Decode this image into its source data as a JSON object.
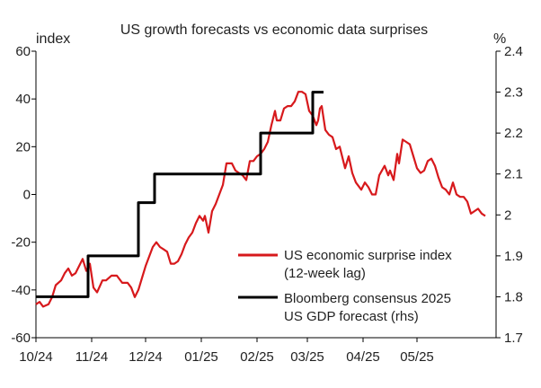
{
  "chart_data": {
    "type": "line",
    "title": "US growth forecasts vs economic data surprises",
    "left_axis": {
      "unit_label": "index",
      "range": [
        -60,
        60
      ],
      "ticks": [
        "60",
        "40",
        "20",
        "0",
        "-20",
        "-40",
        "-60"
      ],
      "tick_values": [
        60,
        40,
        20,
        0,
        -20,
        -40,
        -60
      ]
    },
    "right_axis": {
      "unit_label": "%",
      "range": [
        1.7,
        2.4
      ],
      "ticks": [
        "2.4",
        "2.3",
        "2.2",
        "2.1",
        "2",
        "1.9",
        "1.8",
        "1.7"
      ],
      "tick_values": [
        2.4,
        2.3,
        2.2,
        2.1,
        2.0,
        1.9,
        1.8,
        1.7
      ]
    },
    "x_axis": {
      "range": [
        "2024-10-01",
        "2025-06-14"
      ],
      "tick_labels": [
        "10/24",
        "11/24",
        "12/24",
        "01/25",
        "02/25",
        "03/25",
        "04/25",
        "05/25"
      ],
      "tick_dates": [
        "2024-10-01",
        "2024-11-01",
        "2024-12-01",
        "2025-01-01",
        "2025-02-01",
        "2025-03-01",
        "2025-04-01",
        "2025-05-01"
      ]
    },
    "grid": false,
    "legend_position": "bottom-right",
    "series": [
      {
        "name": "US economic surprise index\n(12-week lag)",
        "axis": "left",
        "color": "#d7191c",
        "points": [
          [
            "2024-10-01",
            -46
          ],
          [
            "2024-10-03",
            -45
          ],
          [
            "2024-10-05",
            -47
          ],
          [
            "2024-10-08",
            -46
          ],
          [
            "2024-10-10",
            -43
          ],
          [
            "2024-10-12",
            -38
          ],
          [
            "2024-10-15",
            -36
          ],
          [
            "2024-10-17",
            -33
          ],
          [
            "2024-10-19",
            -31
          ],
          [
            "2024-10-21",
            -34
          ],
          [
            "2024-10-23",
            -33
          ],
          [
            "2024-10-25",
            -30
          ],
          [
            "2024-10-27",
            -27
          ],
          [
            "2024-10-29",
            -32
          ],
          [
            "2024-10-31",
            -29
          ],
          [
            "2024-11-02",
            -39
          ],
          [
            "2024-11-04",
            -41
          ],
          [
            "2024-11-07",
            -36
          ],
          [
            "2024-11-09",
            -36
          ],
          [
            "2024-11-12",
            -34
          ],
          [
            "2024-11-15",
            -34
          ],
          [
            "2024-11-18",
            -37
          ],
          [
            "2024-11-21",
            -37
          ],
          [
            "2024-11-23",
            -39
          ],
          [
            "2024-11-25",
            -43
          ],
          [
            "2024-11-27",
            -40
          ],
          [
            "2024-11-29",
            -35
          ],
          [
            "2024-12-01",
            -30
          ],
          [
            "2024-12-03",
            -26
          ],
          [
            "2024-12-05",
            -22
          ],
          [
            "2024-12-07",
            -20
          ],
          [
            "2024-12-09",
            -22
          ],
          [
            "2024-12-11",
            -23
          ],
          [
            "2024-12-13",
            -24
          ],
          [
            "2024-12-15",
            -29
          ],
          [
            "2024-12-17",
            -29
          ],
          [
            "2024-12-19",
            -28
          ],
          [
            "2024-12-21",
            -25
          ],
          [
            "2024-12-23",
            -21
          ],
          [
            "2024-12-25",
            -18
          ],
          [
            "2024-12-27",
            -16
          ],
          [
            "2024-12-29",
            -12
          ],
          [
            "2024-12-31",
            -9
          ],
          [
            "2025-01-02",
            -11
          ],
          [
            "2025-01-03",
            -9
          ],
          [
            "2025-01-05",
            -16
          ],
          [
            "2025-01-07",
            -7
          ],
          [
            "2025-01-09",
            -4
          ],
          [
            "2025-01-11",
            0
          ],
          [
            "2025-01-13",
            4
          ],
          [
            "2025-01-15",
            13
          ],
          [
            "2025-01-18",
            13
          ],
          [
            "2025-01-20",
            10
          ],
          [
            "2025-01-22",
            9
          ],
          [
            "2025-01-24",
            8
          ],
          [
            "2025-01-26",
            6
          ],
          [
            "2025-01-28",
            14
          ],
          [
            "2025-01-30",
            14
          ],
          [
            "2025-02-01",
            16
          ],
          [
            "2025-02-03",
            17
          ],
          [
            "2025-02-05",
            19
          ],
          [
            "2025-02-07",
            22
          ],
          [
            "2025-02-09",
            29
          ],
          [
            "2025-02-11",
            35
          ],
          [
            "2025-02-12",
            31
          ],
          [
            "2025-02-14",
            31
          ],
          [
            "2025-02-16",
            36
          ],
          [
            "2025-02-18",
            37
          ],
          [
            "2025-02-20",
            37
          ],
          [
            "2025-02-22",
            39
          ],
          [
            "2025-02-24",
            43
          ],
          [
            "2025-02-26",
            43
          ],
          [
            "2025-02-28",
            42
          ],
          [
            "2025-03-02",
            35
          ],
          [
            "2025-03-04",
            33
          ],
          [
            "2025-03-06",
            29
          ],
          [
            "2025-03-07",
            31
          ],
          [
            "2025-03-08",
            36
          ],
          [
            "2025-03-09",
            37
          ],
          [
            "2025-03-11",
            27
          ],
          [
            "2025-03-13",
            25
          ],
          [
            "2025-03-15",
            24
          ],
          [
            "2025-03-17",
            19
          ],
          [
            "2025-03-19",
            20
          ],
          [
            "2025-03-21",
            14
          ],
          [
            "2025-03-22",
            11
          ],
          [
            "2025-03-24",
            16
          ],
          [
            "2025-03-26",
            9
          ],
          [
            "2025-03-28",
            5
          ],
          [
            "2025-03-31",
            2
          ],
          [
            "2025-04-02",
            5
          ],
          [
            "2025-04-04",
            3
          ],
          [
            "2025-04-06",
            0
          ],
          [
            "2025-04-08",
            0
          ],
          [
            "2025-04-10",
            8
          ],
          [
            "2025-04-13",
            12
          ],
          [
            "2025-04-15",
            8
          ],
          [
            "2025-04-16",
            10
          ],
          [
            "2025-04-18",
            6
          ],
          [
            "2025-04-20",
            17
          ],
          [
            "2025-04-21",
            13
          ],
          [
            "2025-04-23",
            23
          ],
          [
            "2025-04-25",
            22
          ],
          [
            "2025-04-27",
            21
          ],
          [
            "2025-04-29",
            16
          ],
          [
            "2025-05-01",
            11
          ],
          [
            "2025-05-03",
            9
          ],
          [
            "2025-05-05",
            10
          ],
          [
            "2025-05-07",
            14
          ],
          [
            "2025-05-09",
            15
          ],
          [
            "2025-05-11",
            12
          ],
          [
            "2025-05-13",
            7
          ],
          [
            "2025-05-15",
            3
          ],
          [
            "2025-05-17",
            2
          ],
          [
            "2025-05-19",
            0
          ],
          [
            "2025-05-21",
            5
          ],
          [
            "2025-05-23",
            0
          ],
          [
            "2025-05-25",
            -1
          ],
          [
            "2025-05-27",
            -1
          ],
          [
            "2025-05-29",
            -3
          ],
          [
            "2025-05-31",
            -8
          ],
          [
            "2025-06-02",
            -7
          ],
          [
            "2025-06-04",
            -6
          ],
          [
            "2025-06-06",
            -8
          ],
          [
            "2025-06-08",
            -9
          ]
        ]
      },
      {
        "name": "Bloomberg consensus 2025\nUS GDP forecast (rhs)",
        "axis": "right",
        "color": "#000000",
        "points": [
          [
            "2024-10-01",
            1.8
          ],
          [
            "2024-10-30",
            1.8
          ],
          [
            "2024-10-30",
            1.9
          ],
          [
            "2024-11-27",
            1.9
          ],
          [
            "2024-11-27",
            2.03
          ],
          [
            "2024-12-06",
            2.03
          ],
          [
            "2024-12-06",
            2.1
          ],
          [
            "2025-02-03",
            2.1
          ],
          [
            "2025-02-03",
            2.2
          ],
          [
            "2025-03-04",
            2.2
          ],
          [
            "2025-03-04",
            2.3
          ],
          [
            "2025-03-10",
            2.3
          ]
        ]
      }
    ]
  }
}
